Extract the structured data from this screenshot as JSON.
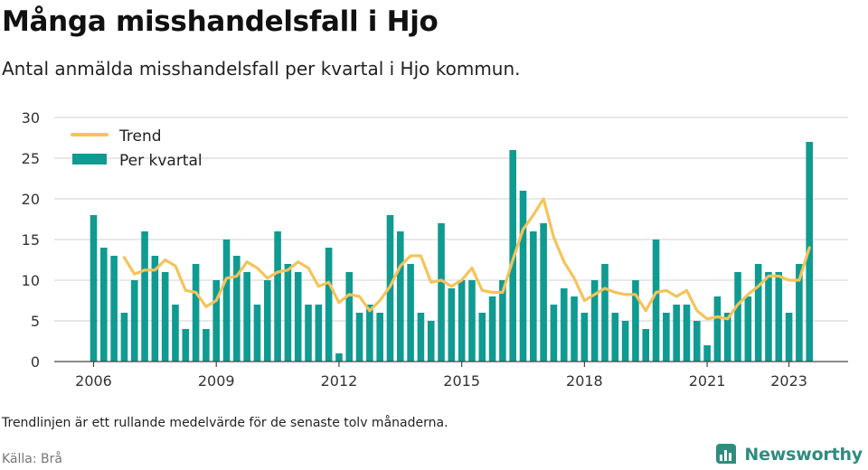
{
  "title": "Många misshandelsfall i Hjo",
  "subtitle": "Antal anmälda misshandelsfall per kvartal i Hjo kommun.",
  "note": "Trendlinjen är ett rullande medelvärde för de senaste tolv månaderna.",
  "source": "Källa: Brå",
  "brand": "Newsworthy",
  "colors": {
    "bar": "#0f9b91",
    "trend": "#f5c35a",
    "grid": "#d9d9d9",
    "axis": "#444444",
    "brand": "#2f8c7f"
  },
  "chart_data": {
    "type": "bar",
    "ylim": [
      0,
      30
    ],
    "yticks": [
      0,
      5,
      10,
      15,
      20,
      25,
      30
    ],
    "xtick_labels": [
      "2006",
      "2009",
      "2012",
      "2015",
      "2018",
      "2021",
      "2023"
    ],
    "xtick_quarter_index": [
      0,
      12,
      24,
      36,
      48,
      60,
      68
    ],
    "legend_position": "top-left",
    "grid": true,
    "series": [
      {
        "name": "Per kvartal",
        "type": "bar",
        "values": [
          18,
          14,
          13,
          6,
          10,
          16,
          13,
          11,
          7,
          4,
          12,
          4,
          10,
          15,
          13,
          11,
          7,
          10,
          16,
          12,
          11,
          7,
          7,
          14,
          1,
          11,
          6,
          7,
          6,
          18,
          16,
          12,
          6,
          5,
          17,
          9,
          10,
          10,
          6,
          8,
          10,
          26,
          21,
          16,
          17,
          7,
          9,
          8,
          6,
          10,
          12,
          6,
          5,
          10,
          4,
          15,
          6,
          7,
          7,
          5,
          2,
          8,
          6,
          11,
          8,
          12,
          11,
          11,
          6,
          12,
          27
        ]
      },
      {
        "name": "Trend",
        "type": "line",
        "values": [
          null,
          null,
          null,
          12.8,
          10.75,
          11.25,
          11.25,
          12.5,
          11.75,
          8.75,
          8.5,
          6.75,
          7.5,
          10.25,
          10.5,
          12.25,
          11.5,
          10.25,
          11,
          11.25,
          12.25,
          11.5,
          9.25,
          9.75,
          7.25,
          8.25,
          8,
          6.25,
          7.5,
          9.25,
          11.75,
          13,
          13,
          9.75,
          10,
          9.25,
          10,
          11.5,
          8.75,
          8.5,
          8.5,
          12.5,
          16.25,
          18,
          20,
          15.25,
          12.25,
          10.25,
          7.5,
          8.25,
          9,
          8.5,
          8.25,
          8.25,
          6.25,
          8.5,
          8.75,
          8,
          8.75,
          6.25,
          5.25,
          5.5,
          5.25,
          7,
          8.25,
          9.25,
          10.5,
          10.5,
          10,
          10,
          14
        ]
      }
    ]
  }
}
